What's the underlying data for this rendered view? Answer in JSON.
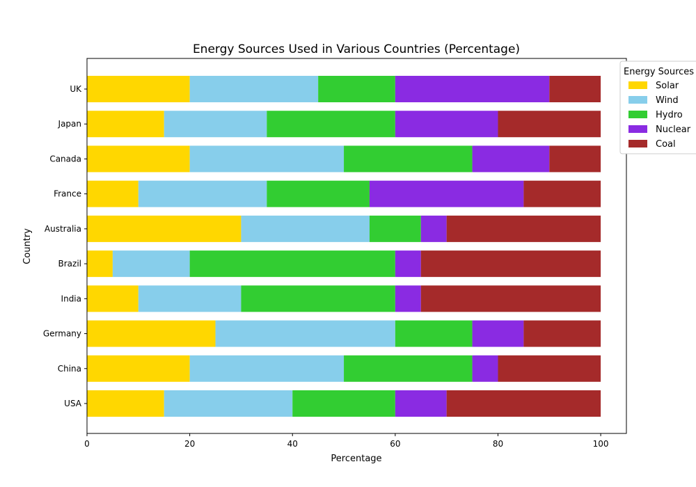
{
  "chart_data": {
    "type": "bar",
    "orientation": "horizontal",
    "stacked": true,
    "title": "Energy Sources Used in Various Countries (Percentage)",
    "xlabel": "Percentage",
    "ylabel": "Country",
    "xlim": [
      0,
      105
    ],
    "xticks": [
      "0",
      "20",
      "40",
      "60",
      "80",
      "100"
    ],
    "grid": false,
    "legend_title": "Energy Sources",
    "legend_position": "top-right",
    "categories": [
      "USA",
      "China",
      "Germany",
      "India",
      "Brazil",
      "Australia",
      "France",
      "Canada",
      "Japan",
      "UK"
    ],
    "series": [
      {
        "name": "Solar",
        "color": "#FFD700",
        "values": [
          15,
          20,
          25,
          10,
          5,
          30,
          10,
          20,
          15,
          20
        ]
      },
      {
        "name": "Wind",
        "color": "#87CEEB",
        "values": [
          25,
          30,
          35,
          20,
          15,
          25,
          25,
          30,
          20,
          25
        ]
      },
      {
        "name": "Hydro",
        "color": "#32CD32",
        "values": [
          20,
          25,
          15,
          30,
          40,
          10,
          20,
          25,
          25,
          15
        ]
      },
      {
        "name": "Nuclear",
        "color": "#8A2BE2",
        "values": [
          10,
          5,
          10,
          5,
          5,
          5,
          30,
          15,
          20,
          30
        ]
      },
      {
        "name": "Coal",
        "color": "#A52A2A",
        "values": [
          30,
          20,
          15,
          35,
          35,
          30,
          15,
          10,
          20,
          10
        ]
      }
    ]
  }
}
